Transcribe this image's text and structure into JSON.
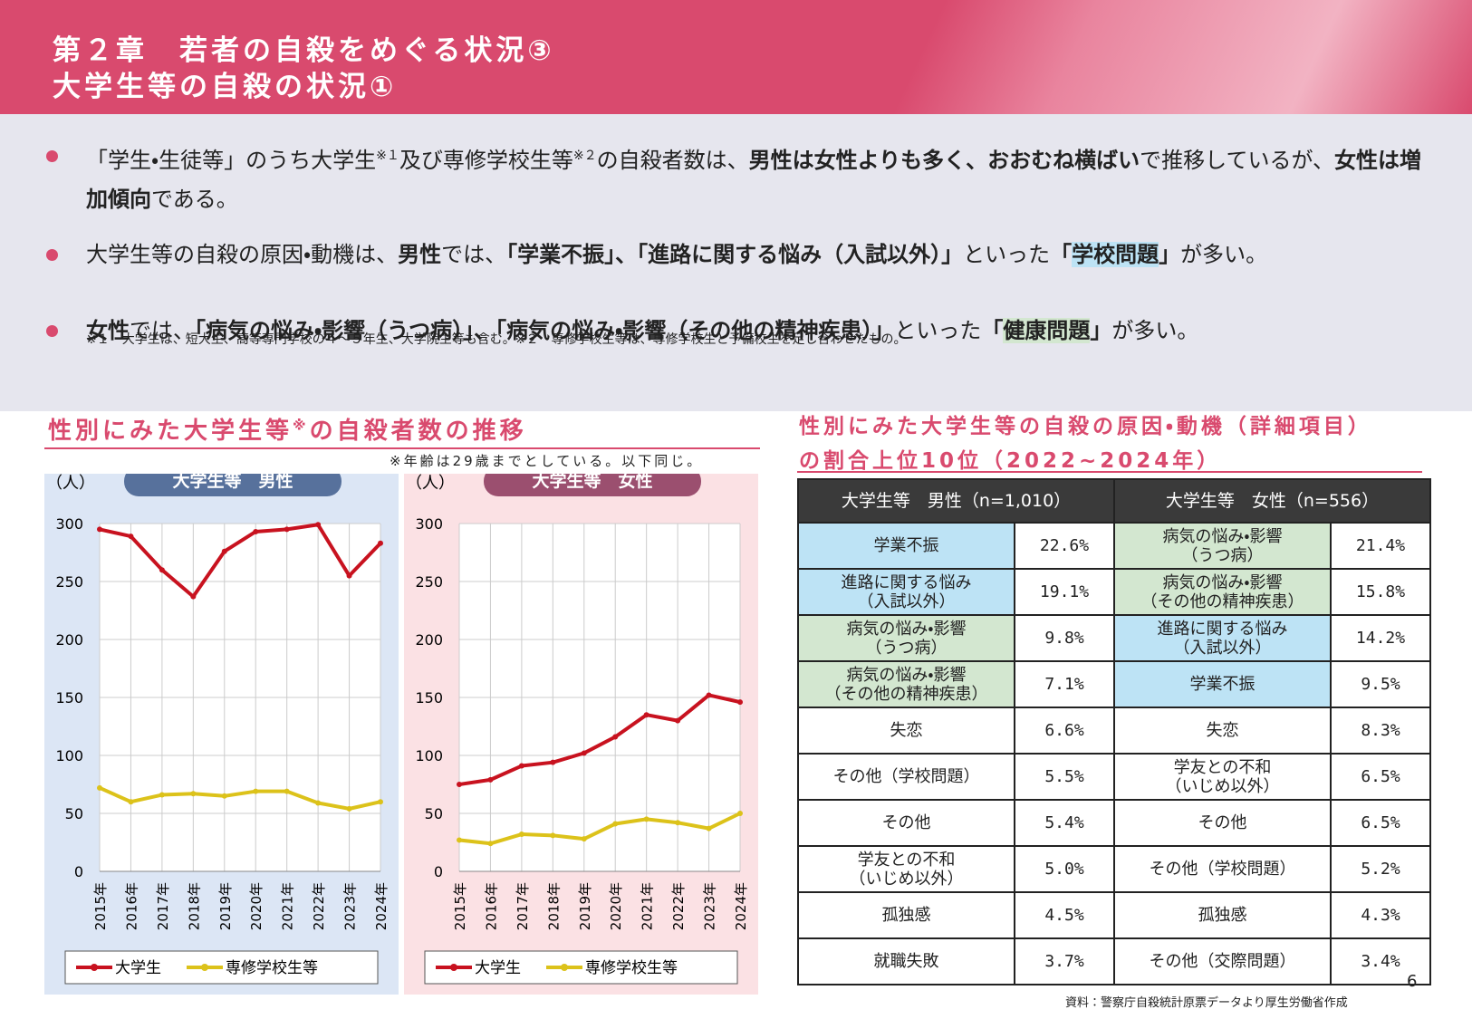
{
  "header": {
    "title_lines": [
      "第２章　若者の自殺をめぐる状況③",
      "大学生等の自殺の状況①"
    ]
  },
  "bullets": [
    {
      "segments": [
        {
          "text": "「学生・生徒等」のうち大学生"
        },
        {
          "text": "※１",
          "sup": true
        },
        {
          "text": "及び専修学校生等"
        },
        {
          "text": "※２",
          "sup": true
        },
        {
          "text": "の自殺者数は、"
        },
        {
          "text": "男性は女性よりも多く、おおむね横ばい",
          "bold": true
        },
        {
          "text": "で推移しているが、"
        },
        {
          "text": "女性は増加傾向",
          "bold": true
        },
        {
          "text": "である。"
        }
      ]
    },
    {
      "segments": [
        {
          "text": "大学生等の自殺の原因・動機は、"
        },
        {
          "text": "男性",
          "bold": true
        },
        {
          "text": "では、"
        },
        {
          "text": "「学業不振」、「進路に関する悩み（入試以外）」",
          "bold": true
        },
        {
          "text": "といった"
        },
        {
          "text": "「",
          "bold": true
        },
        {
          "text": "学校問題",
          "bold": true,
          "highlight": "#bde3f5"
        },
        {
          "text": "」",
          "bold": true
        },
        {
          "text": "が多い。"
        }
      ]
    },
    {
      "segments": [
        {
          "text": "女性",
          "bold": true
        },
        {
          "text": "では、"
        },
        {
          "text": "「病気の悩み・影響（うつ病）」、「病気の悩み・影響（その他の精神疾患）」",
          "bold": true
        },
        {
          "text": "といった"
        },
        {
          "text": "「",
          "bold": true
        },
        {
          "text": "健康問題",
          "bold": true,
          "highlight": "#d3e7d0"
        },
        {
          "text": "」",
          "bold": true
        },
        {
          "text": "が多い。"
        }
      ]
    }
  ],
  "footnote": "※１　大学生は、短大生、高等専門学校の４～５年生、大学院生等も含む。※２　専修学校生等は、専修学校生と予備校生を足し合わせたもの。",
  "left_panel": {
    "title": "性別にみた大学生等",
    "title_sup": "※",
    "title_end": "の自殺者数の推移",
    "note": "※年齢は29歳までとしている。以下同じ。"
  },
  "chart_data": [
    {
      "type": "line",
      "title": "大学生等　男性",
      "title_color": "#57719c",
      "background": "#dce6f5",
      "y_label": "（人）",
      "categories": [
        "2015年",
        "2016年",
        "2017年",
        "2018年",
        "2019年",
        "2020年",
        "2021年",
        "2022年",
        "2023年",
        "2024年"
      ],
      "series": [
        {
          "name": "大学生",
          "color": "#c8121f",
          "values": [
            295,
            289,
            260,
            237,
            276,
            293,
            295,
            299,
            255,
            283
          ]
        },
        {
          "name": "専修学校生等",
          "color": "#dcc21a",
          "values": [
            72,
            60,
            66,
            67,
            65,
            69,
            69,
            59,
            54,
            60
          ]
        }
      ],
      "ylim": [
        0,
        300
      ],
      "yticks": [
        0,
        50,
        100,
        150,
        200,
        250,
        300
      ],
      "grid": true
    },
    {
      "type": "line",
      "title": "大学生等　女性",
      "title_color": "#9b4f6f",
      "background": "#fbe1e4",
      "y_label": "（人）",
      "categories": [
        "2015年",
        "2016年",
        "2017年",
        "2018年",
        "2019年",
        "2020年",
        "2021年",
        "2022年",
        "2023年",
        "2024年"
      ],
      "series": [
        {
          "name": "大学生",
          "color": "#c8121f",
          "values": [
            75,
            79,
            91,
            94,
            102,
            116,
            135,
            130,
            152,
            146
          ]
        },
        {
          "name": "専修学校生等",
          "color": "#dcc21a",
          "values": [
            27,
            24,
            32,
            31,
            28,
            41,
            45,
            42,
            37,
            50
          ]
        }
      ],
      "ylim": [
        0,
        300
      ],
      "yticks": [
        0,
        50,
        100,
        150,
        200,
        250,
        300
      ],
      "grid": true
    }
  ],
  "right_panel": {
    "title_lines": [
      "性別にみた大学生等の自殺の原因・動機（詳細項目）",
      "の割合上位10位（2022~2024年）"
    ]
  },
  "table": {
    "header": [
      "大学生等　男性（n=1,010）",
      "大学生等　女性（n=556）"
    ],
    "rows": [
      [
        {
          "cause": "学業不振",
          "pct": "22.6%",
          "fill": "#bde3f5"
        },
        {
          "cause": "病気の悩み・影響\n（うつ病）",
          "pct": "21.4%",
          "fill": "#d3e7d0"
        }
      ],
      [
        {
          "cause": "進路に関する悩み\n（入試以外）",
          "pct": "19.1%",
          "fill": "#bde3f5"
        },
        {
          "cause": "病気の悩み・影響\n（その他の精神疾患）",
          "pct": "15.8%",
          "fill": "#d3e7d0"
        }
      ],
      [
        {
          "cause": "病気の悩み・影響\n（うつ病）",
          "pct": "9.8%",
          "fill": "#d3e7d0"
        },
        {
          "cause": "進路に関する悩み\n（入試以外）",
          "pct": "14.2%",
          "fill": "#bde3f5"
        }
      ],
      [
        {
          "cause": "病気の悩み・影響\n（その他の精神疾患）",
          "pct": "7.1%",
          "fill": "#d3e7d0"
        },
        {
          "cause": "学業不振",
          "pct": "9.5%",
          "fill": "#bde3f5"
        }
      ],
      [
        {
          "cause": "失恋",
          "pct": "6.6%"
        },
        {
          "cause": "失恋",
          "pct": "8.3%"
        }
      ],
      [
        {
          "cause": "その他（学校問題）",
          "pct": "5.5%"
        },
        {
          "cause": "学友との不和\n（いじめ以外）",
          "pct": "6.5%"
        }
      ],
      [
        {
          "cause": "その他",
          "pct": "5.4%"
        },
        {
          "cause": "その他",
          "pct": "6.5%"
        }
      ],
      [
        {
          "cause": "学友との不和\n（いじめ以外）",
          "pct": "5.0%"
        },
        {
          "cause": "その他（学校問題）",
          "pct": "5.2%"
        }
      ],
      [
        {
          "cause": "孤独感",
          "pct": "4.5%"
        },
        {
          "cause": "孤独感",
          "pct": "4.3%"
        }
      ],
      [
        {
          "cause": "就職失敗",
          "pct": "3.7%"
        },
        {
          "cause": "その他（交際問題）",
          "pct": "3.4%"
        }
      ]
    ]
  },
  "source": "資料：警察庁自殺統計原票データより厚生労働省作成",
  "page_number": "6"
}
